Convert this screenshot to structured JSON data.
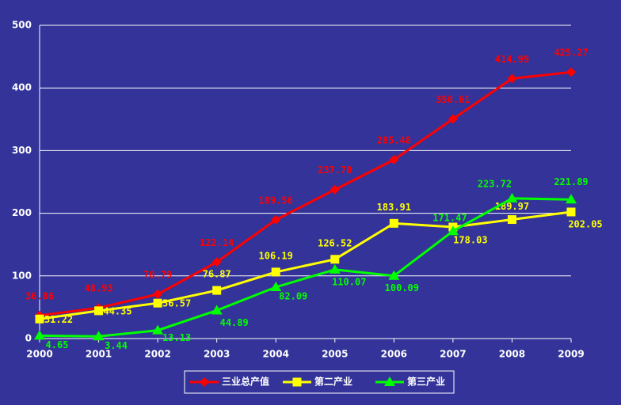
{
  "chart_data": {
    "type": "line",
    "categories": [
      "2000",
      "2001",
      "2002",
      "2003",
      "2004",
      "2005",
      "2006",
      "2007",
      "2008",
      "2009"
    ],
    "series": [
      {
        "name": "三业总产值",
        "color": "#ff0000",
        "marker": "diamond",
        "values": [
          36.86,
          48.93,
          70.79,
          122.14,
          189.56,
          237.7,
          285.48,
          350.61,
          414.99,
          425.27
        ],
        "value_labels": [
          "36.86",
          "48.93",
          "70.79",
          "122.14",
          "189.56",
          "237.70",
          "285.48",
          "350.61",
          "414.99",
          "425.27"
        ]
      },
      {
        "name": "第二产业",
        "color": "#ffff00",
        "marker": "square",
        "values": [
          31.22,
          44.35,
          56.57,
          76.87,
          106.19,
          126.52,
          183.91,
          178.03,
          189.97,
          202.05
        ]
      },
      {
        "name": "第三产业",
        "color": "#00ff00",
        "marker": "triangle",
        "values": [
          4.65,
          3.44,
          13.13,
          44.89,
          82.09,
          110.07,
          100.09,
          171.47,
          223.72,
          221.89
        ]
      }
    ],
    "ylim": [
      0,
      500
    ],
    "yticks": [
      0,
      100,
      200,
      300,
      400,
      500
    ],
    "grid": true
  }
}
